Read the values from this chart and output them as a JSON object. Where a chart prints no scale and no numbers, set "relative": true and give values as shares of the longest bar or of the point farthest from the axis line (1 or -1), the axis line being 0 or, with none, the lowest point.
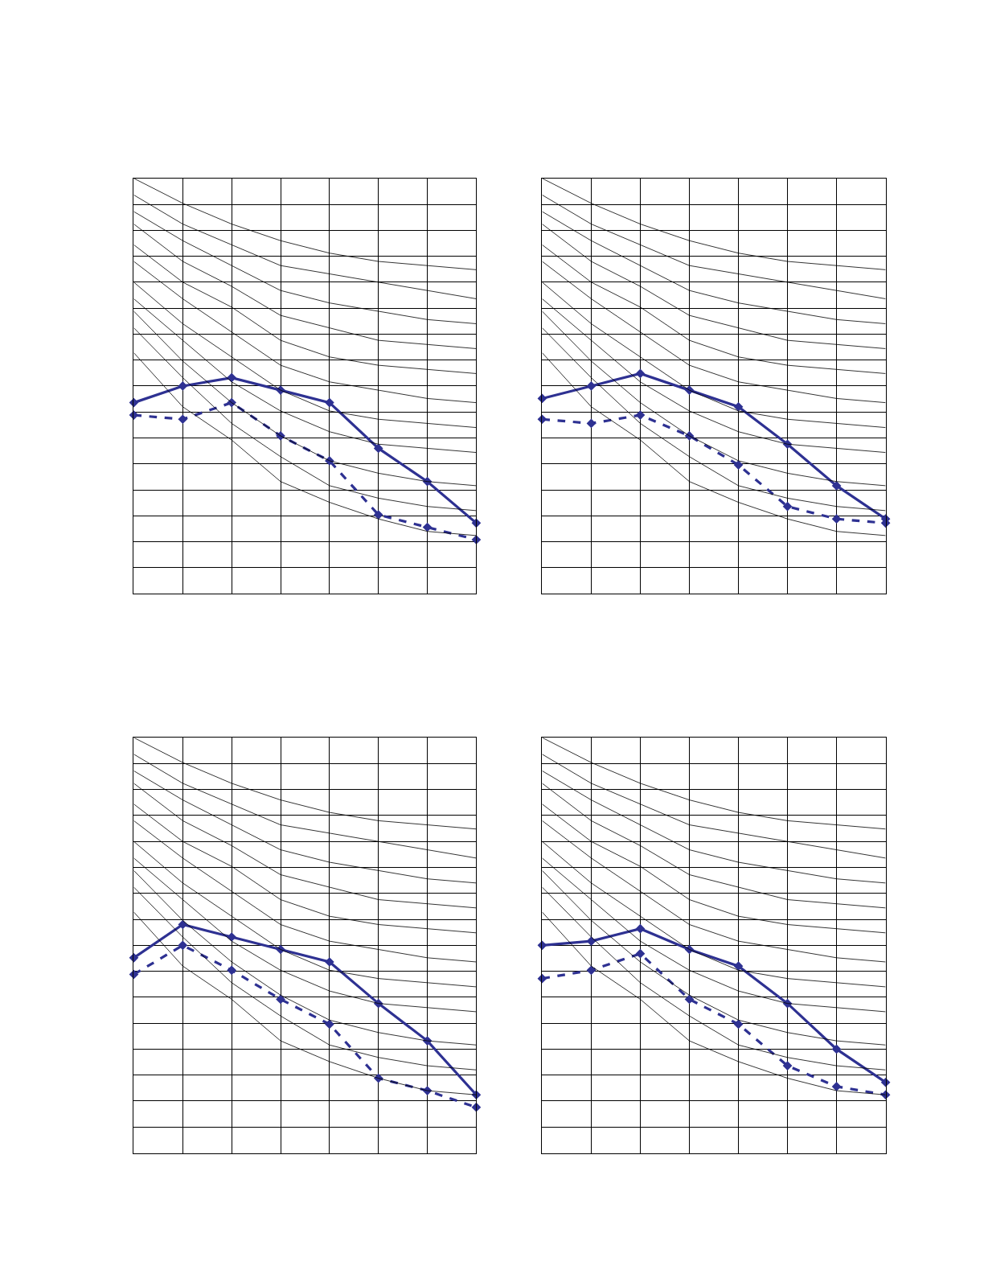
{
  "chart_data": [
    {
      "type": "line",
      "relative": true,
      "grid": true,
      "categories": [
        null,
        null,
        null,
        null,
        null,
        null,
        null,
        null
      ],
      "series": [
        {
          "color": "#2e3192",
          "marker": "diamond",
          "line_style": "solid",
          "values": [
            0.46,
            0.5,
            0.52,
            0.49,
            0.46,
            0.35,
            0.27,
            0.17
          ]
        },
        {
          "color": "#2e3192",
          "marker": "diamond",
          "line_style": "dashed",
          "values": [
            0.43,
            0.42,
            0.46,
            0.38,
            0.32,
            0.19,
            0.16,
            0.13
          ]
        },
        {
          "color": "#000000",
          "marker": "none",
          "line_style": "solid",
          "values": [
            1.0,
            0.94,
            0.89,
            0.85,
            0.82,
            0.8,
            0.79,
            0.78
          ]
        },
        {
          "color": "#000000",
          "marker": "none",
          "line_style": "solid",
          "values": [
            0.96,
            0.89,
            0.84,
            0.79,
            0.77,
            0.75,
            0.73,
            0.71
          ]
        },
        {
          "color": "#000000",
          "marker": "none",
          "line_style": "solid",
          "values": [
            0.92,
            0.85,
            0.79,
            0.73,
            0.7,
            0.68,
            0.66,
            0.65
          ]
        },
        {
          "color": "#000000",
          "marker": "none",
          "line_style": "solid",
          "values": [
            0.89,
            0.8,
            0.74,
            0.67,
            0.64,
            0.61,
            0.6,
            0.59
          ]
        },
        {
          "color": "#000000",
          "marker": "none",
          "line_style": "solid",
          "values": [
            0.84,
            0.75,
            0.69,
            0.61,
            0.57,
            0.55,
            0.54,
            0.53
          ]
        },
        {
          "color": "#000000",
          "marker": "none",
          "line_style": "solid",
          "values": [
            0.8,
            0.71,
            0.63,
            0.55,
            0.51,
            0.49,
            0.47,
            0.46
          ]
        },
        {
          "color": "#000000",
          "marker": "none",
          "line_style": "solid",
          "values": [
            0.75,
            0.65,
            0.57,
            0.49,
            0.44,
            0.42,
            0.41,
            0.4
          ]
        },
        {
          "color": "#000000",
          "marker": "none",
          "line_style": "solid",
          "values": [
            0.71,
            0.61,
            0.51,
            0.44,
            0.39,
            0.36,
            0.35,
            0.34
          ]
        },
        {
          "color": "#000000",
          "marker": "none",
          "line_style": "solid",
          "values": [
            0.68,
            0.56,
            0.46,
            0.38,
            0.32,
            0.29,
            0.27,
            0.26
          ]
        },
        {
          "color": "#000000",
          "marker": "none",
          "line_style": "solid",
          "values": [
            0.64,
            0.52,
            0.41,
            0.33,
            0.26,
            0.23,
            0.21,
            0.2
          ]
        },
        {
          "color": "#000000",
          "marker": "none",
          "line_style": "solid",
          "values": [
            0.58,
            0.45,
            0.37,
            0.27,
            0.22,
            0.18,
            0.15,
            0.14
          ]
        }
      ]
    },
    {
      "type": "line",
      "relative": true,
      "grid": true,
      "categories": [
        null,
        null,
        null,
        null,
        null,
        null,
        null,
        null
      ],
      "series": [
        {
          "color": "#2e3192",
          "marker": "diamond",
          "line_style": "solid",
          "values": [
            0.47,
            0.5,
            0.53,
            0.49,
            0.45,
            0.36,
            0.26,
            0.18
          ]
        },
        {
          "color": "#2e3192",
          "marker": "diamond",
          "line_style": "dashed",
          "values": [
            0.42,
            0.41,
            0.43,
            0.38,
            0.31,
            0.21,
            0.18,
            0.17
          ]
        },
        {
          "color": "#000000",
          "marker": "none",
          "line_style": "solid",
          "values": [
            1.0,
            0.94,
            0.89,
            0.85,
            0.82,
            0.8,
            0.79,
            0.78
          ]
        },
        {
          "color": "#000000",
          "marker": "none",
          "line_style": "solid",
          "values": [
            0.96,
            0.89,
            0.84,
            0.79,
            0.77,
            0.75,
            0.73,
            0.71
          ]
        },
        {
          "color": "#000000",
          "marker": "none",
          "line_style": "solid",
          "values": [
            0.92,
            0.85,
            0.79,
            0.73,
            0.7,
            0.68,
            0.66,
            0.65
          ]
        },
        {
          "color": "#000000",
          "marker": "none",
          "line_style": "solid",
          "values": [
            0.89,
            0.8,
            0.74,
            0.67,
            0.64,
            0.61,
            0.6,
            0.59
          ]
        },
        {
          "color": "#000000",
          "marker": "none",
          "line_style": "solid",
          "values": [
            0.84,
            0.75,
            0.69,
            0.61,
            0.57,
            0.55,
            0.54,
            0.53
          ]
        },
        {
          "color": "#000000",
          "marker": "none",
          "line_style": "solid",
          "values": [
            0.8,
            0.71,
            0.63,
            0.55,
            0.51,
            0.49,
            0.47,
            0.46
          ]
        },
        {
          "color": "#000000",
          "marker": "none",
          "line_style": "solid",
          "values": [
            0.75,
            0.65,
            0.57,
            0.49,
            0.44,
            0.42,
            0.41,
            0.4
          ]
        },
        {
          "color": "#000000",
          "marker": "none",
          "line_style": "solid",
          "values": [
            0.71,
            0.61,
            0.51,
            0.44,
            0.39,
            0.36,
            0.35,
            0.34
          ]
        },
        {
          "color": "#000000",
          "marker": "none",
          "line_style": "solid",
          "values": [
            0.68,
            0.56,
            0.46,
            0.38,
            0.32,
            0.29,
            0.27,
            0.26
          ]
        },
        {
          "color": "#000000",
          "marker": "none",
          "line_style": "solid",
          "values": [
            0.64,
            0.52,
            0.41,
            0.33,
            0.26,
            0.23,
            0.21,
            0.2
          ]
        },
        {
          "color": "#000000",
          "marker": "none",
          "line_style": "solid",
          "values": [
            0.58,
            0.45,
            0.37,
            0.27,
            0.22,
            0.18,
            0.15,
            0.14
          ]
        }
      ]
    },
    {
      "type": "line",
      "relative": true,
      "grid": true,
      "categories": [
        null,
        null,
        null,
        null,
        null,
        null,
        null,
        null
      ],
      "series": [
        {
          "color": "#2e3192",
          "marker": "diamond",
          "line_style": "solid",
          "values": [
            0.47,
            0.55,
            0.52,
            0.49,
            0.46,
            0.36,
            0.27,
            0.14
          ]
        },
        {
          "color": "#2e3192",
          "marker": "diamond",
          "line_style": "dashed",
          "values": [
            0.43,
            0.5,
            0.44,
            0.37,
            0.31,
            0.18,
            0.15,
            0.11
          ]
        },
        {
          "color": "#000000",
          "marker": "none",
          "line_style": "solid",
          "values": [
            1.0,
            0.94,
            0.89,
            0.85,
            0.82,
            0.8,
            0.79,
            0.78
          ]
        },
        {
          "color": "#000000",
          "marker": "none",
          "line_style": "solid",
          "values": [
            0.96,
            0.89,
            0.84,
            0.79,
            0.77,
            0.75,
            0.73,
            0.71
          ]
        },
        {
          "color": "#000000",
          "marker": "none",
          "line_style": "solid",
          "values": [
            0.92,
            0.85,
            0.79,
            0.73,
            0.7,
            0.68,
            0.66,
            0.65
          ]
        },
        {
          "color": "#000000",
          "marker": "none",
          "line_style": "solid",
          "values": [
            0.89,
            0.8,
            0.74,
            0.67,
            0.64,
            0.61,
            0.6,
            0.59
          ]
        },
        {
          "color": "#000000",
          "marker": "none",
          "line_style": "solid",
          "values": [
            0.84,
            0.75,
            0.69,
            0.61,
            0.57,
            0.55,
            0.54,
            0.53
          ]
        },
        {
          "color": "#000000",
          "marker": "none",
          "line_style": "solid",
          "values": [
            0.8,
            0.71,
            0.63,
            0.55,
            0.51,
            0.49,
            0.47,
            0.46
          ]
        },
        {
          "color": "#000000",
          "marker": "none",
          "line_style": "solid",
          "values": [
            0.75,
            0.65,
            0.57,
            0.49,
            0.44,
            0.42,
            0.41,
            0.4
          ]
        },
        {
          "color": "#000000",
          "marker": "none",
          "line_style": "solid",
          "values": [
            0.71,
            0.61,
            0.51,
            0.44,
            0.39,
            0.36,
            0.35,
            0.34
          ]
        },
        {
          "color": "#000000",
          "marker": "none",
          "line_style": "solid",
          "values": [
            0.68,
            0.56,
            0.46,
            0.38,
            0.32,
            0.29,
            0.27,
            0.26
          ]
        },
        {
          "color": "#000000",
          "marker": "none",
          "line_style": "solid",
          "values": [
            0.64,
            0.52,
            0.41,
            0.33,
            0.26,
            0.23,
            0.21,
            0.2
          ]
        },
        {
          "color": "#000000",
          "marker": "none",
          "line_style": "solid",
          "values": [
            0.58,
            0.45,
            0.37,
            0.27,
            0.22,
            0.18,
            0.15,
            0.14
          ]
        }
      ]
    },
    {
      "type": "line",
      "relative": true,
      "grid": true,
      "categories": [
        null,
        null,
        null,
        null,
        null,
        null,
        null,
        null
      ],
      "series": [
        {
          "color": "#2e3192",
          "marker": "diamond",
          "line_style": "solid",
          "values": [
            0.5,
            0.51,
            0.54,
            0.49,
            0.45,
            0.36,
            0.25,
            0.17
          ]
        },
        {
          "color": "#2e3192",
          "marker": "diamond",
          "line_style": "dashed",
          "values": [
            0.42,
            0.44,
            0.48,
            0.37,
            0.31,
            0.21,
            0.16,
            0.14
          ]
        },
        {
          "color": "#000000",
          "marker": "none",
          "line_style": "solid",
          "values": [
            1.0,
            0.94,
            0.89,
            0.85,
            0.82,
            0.8,
            0.79,
            0.78
          ]
        },
        {
          "color": "#000000",
          "marker": "none",
          "line_style": "solid",
          "values": [
            0.96,
            0.89,
            0.84,
            0.79,
            0.77,
            0.75,
            0.73,
            0.71
          ]
        },
        {
          "color": "#000000",
          "marker": "none",
          "line_style": "solid",
          "values": [
            0.92,
            0.85,
            0.79,
            0.73,
            0.7,
            0.68,
            0.66,
            0.65
          ]
        },
        {
          "color": "#000000",
          "marker": "none",
          "line_style": "solid",
          "values": [
            0.89,
            0.8,
            0.74,
            0.67,
            0.64,
            0.61,
            0.6,
            0.59
          ]
        },
        {
          "color": "#000000",
          "marker": "none",
          "line_style": "solid",
          "values": [
            0.84,
            0.75,
            0.69,
            0.61,
            0.57,
            0.55,
            0.54,
            0.53
          ]
        },
        {
          "color": "#000000",
          "marker": "none",
          "line_style": "solid",
          "values": [
            0.8,
            0.71,
            0.63,
            0.55,
            0.51,
            0.49,
            0.47,
            0.46
          ]
        },
        {
          "color": "#000000",
          "marker": "none",
          "line_style": "solid",
          "values": [
            0.75,
            0.65,
            0.57,
            0.49,
            0.44,
            0.42,
            0.41,
            0.4
          ]
        },
        {
          "color": "#000000",
          "marker": "none",
          "line_style": "solid",
          "values": [
            0.71,
            0.61,
            0.51,
            0.44,
            0.39,
            0.36,
            0.35,
            0.34
          ]
        },
        {
          "color": "#000000",
          "marker": "none",
          "line_style": "solid",
          "values": [
            0.68,
            0.56,
            0.46,
            0.38,
            0.32,
            0.29,
            0.27,
            0.26
          ]
        },
        {
          "color": "#000000",
          "marker": "none",
          "line_style": "solid",
          "values": [
            0.64,
            0.52,
            0.41,
            0.33,
            0.26,
            0.23,
            0.21,
            0.2
          ]
        },
        {
          "color": "#000000",
          "marker": "none",
          "line_style": "solid",
          "values": [
            0.58,
            0.45,
            0.37,
            0.27,
            0.22,
            0.18,
            0.15,
            0.14
          ]
        }
      ]
    }
  ]
}
